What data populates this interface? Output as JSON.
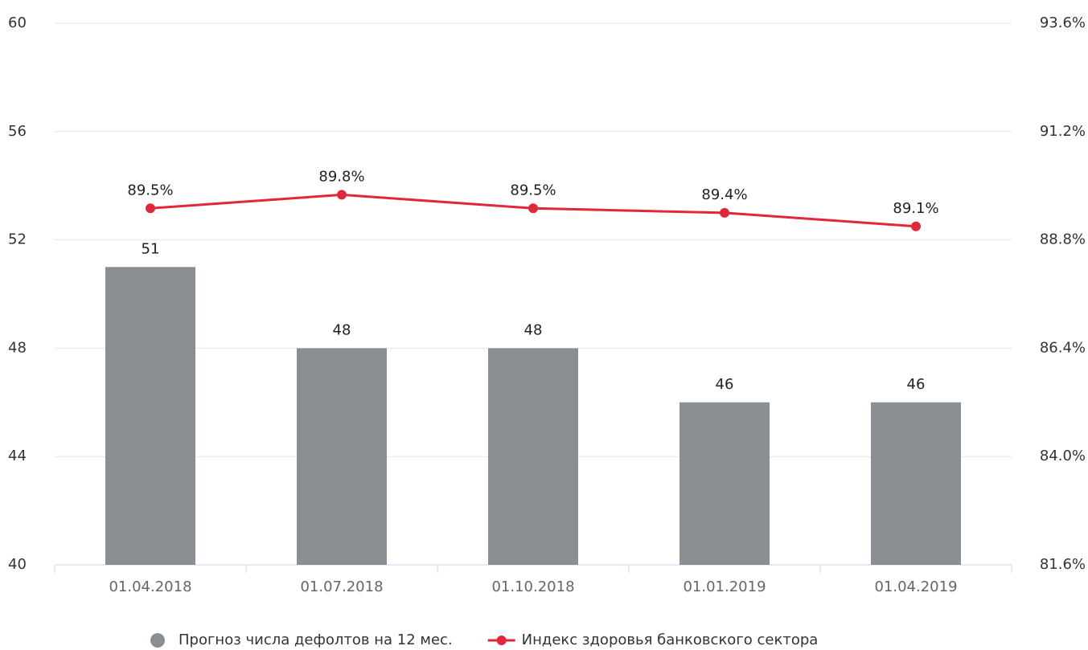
{
  "chart_data": {
    "type": "bar",
    "categories": [
      "01.04.2018",
      "01.07.2018",
      "01.10.2018",
      "01.01.2019",
      "01.04.2019"
    ],
    "series": [
      {
        "name": "Прогноз числа дефолтов на 12 мес.",
        "type": "bar",
        "color": "#8b8f94",
        "values": [
          51,
          48,
          48,
          46,
          46
        ]
      },
      {
        "name": "Индекс здоровья банковского сектора",
        "type": "line",
        "axis": "y2",
        "color": "#e0283a",
        "values": [
          89.5,
          89.8,
          89.5,
          89.4,
          89.1
        ],
        "value_labels": [
          "89.5%",
          "89.8%",
          "89.5%",
          "89.4%",
          "89.1%"
        ]
      }
    ],
    "ylim": [
      40,
      60
    ],
    "yticks": [
      40,
      44,
      48,
      52,
      56,
      60
    ],
    "y2lim": [
      81.6,
      93.6
    ],
    "y2ticks": [
      {
        "value": 81.6,
        "label": "81.6%"
      },
      {
        "value": 84.0,
        "label": "84.0%"
      },
      {
        "value": 86.4,
        "label": "86.4%"
      },
      {
        "value": 88.8,
        "label": "88.8%"
      },
      {
        "value": 91.2,
        "label": "91.2%"
      },
      {
        "value": 93.6,
        "label": "93.6%"
      }
    ],
    "grid": true,
    "legend": "bottom"
  }
}
